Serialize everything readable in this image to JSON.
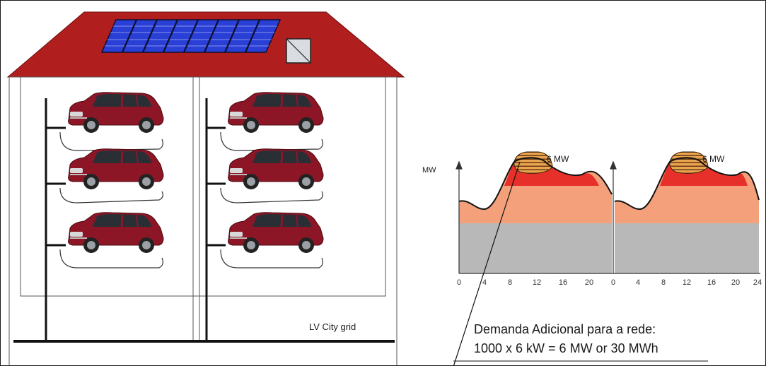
{
  "diagram": {
    "grid_label": "LV City grid",
    "y_axis_unit": "MW",
    "peak_labels": [
      "6 MW",
      "6 MW"
    ],
    "x_ticks_day1": [
      "0",
      "4",
      "8",
      "12",
      "16",
      "20"
    ],
    "x_ticks_day2": [
      "0",
      "4",
      "8",
      "12",
      "16",
      "20",
      "24"
    ],
    "annotation_line1": "Demanda Adicional para a rede:",
    "annotation_line2": "1000 x 6 kW = 6 MW or 30 MWh",
    "car_count": 6,
    "colors": {
      "roof": "#b01e1e",
      "solar_panel": "#2a3fd6",
      "car": "#8c1626",
      "base_load": "#b8b8b8",
      "mid_load": "#f4a07a",
      "peak_load": "#e8302a",
      "ev_load": "#e09a48"
    }
  }
}
